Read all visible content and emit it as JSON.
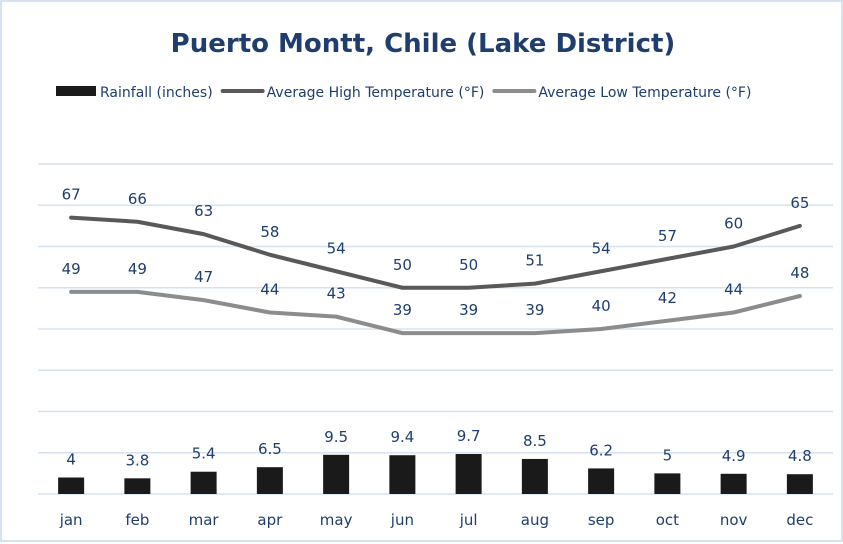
{
  "chart_data": {
    "type": "bar+line",
    "title": "Puerto Montt, Chile (Lake District)",
    "categories": [
      "jan",
      "feb",
      "mar",
      "apr",
      "may",
      "jun",
      "jul",
      "aug",
      "sep",
      "oct",
      "nov",
      "dec"
    ],
    "series": [
      {
        "name": "Rainfall (inches)",
        "type": "bar",
        "color": "#1a1a1a",
        "values": [
          4,
          3.8,
          5.4,
          6.5,
          9.5,
          9.4,
          9.7,
          8.5,
          6.2,
          5,
          4.9,
          4.8
        ]
      },
      {
        "name": "Average High Temperature (°F)",
        "type": "line",
        "color": "#595959",
        "values": [
          67,
          66,
          63,
          58,
          54,
          50,
          50,
          51,
          54,
          57,
          60,
          65
        ]
      },
      {
        "name": "Average Low Temperature (°F)",
        "type": "line",
        "color": "#8c8c8c",
        "values": [
          49,
          49,
          47,
          44,
          43,
          39,
          39,
          39,
          40,
          42,
          44,
          48
        ]
      }
    ],
    "ylim": [
      0,
      80
    ],
    "ytick_step": 10,
    "grid": true,
    "legend": "top",
    "label_color": "#1f3e6e",
    "grid_color": "#d6e2f1"
  }
}
